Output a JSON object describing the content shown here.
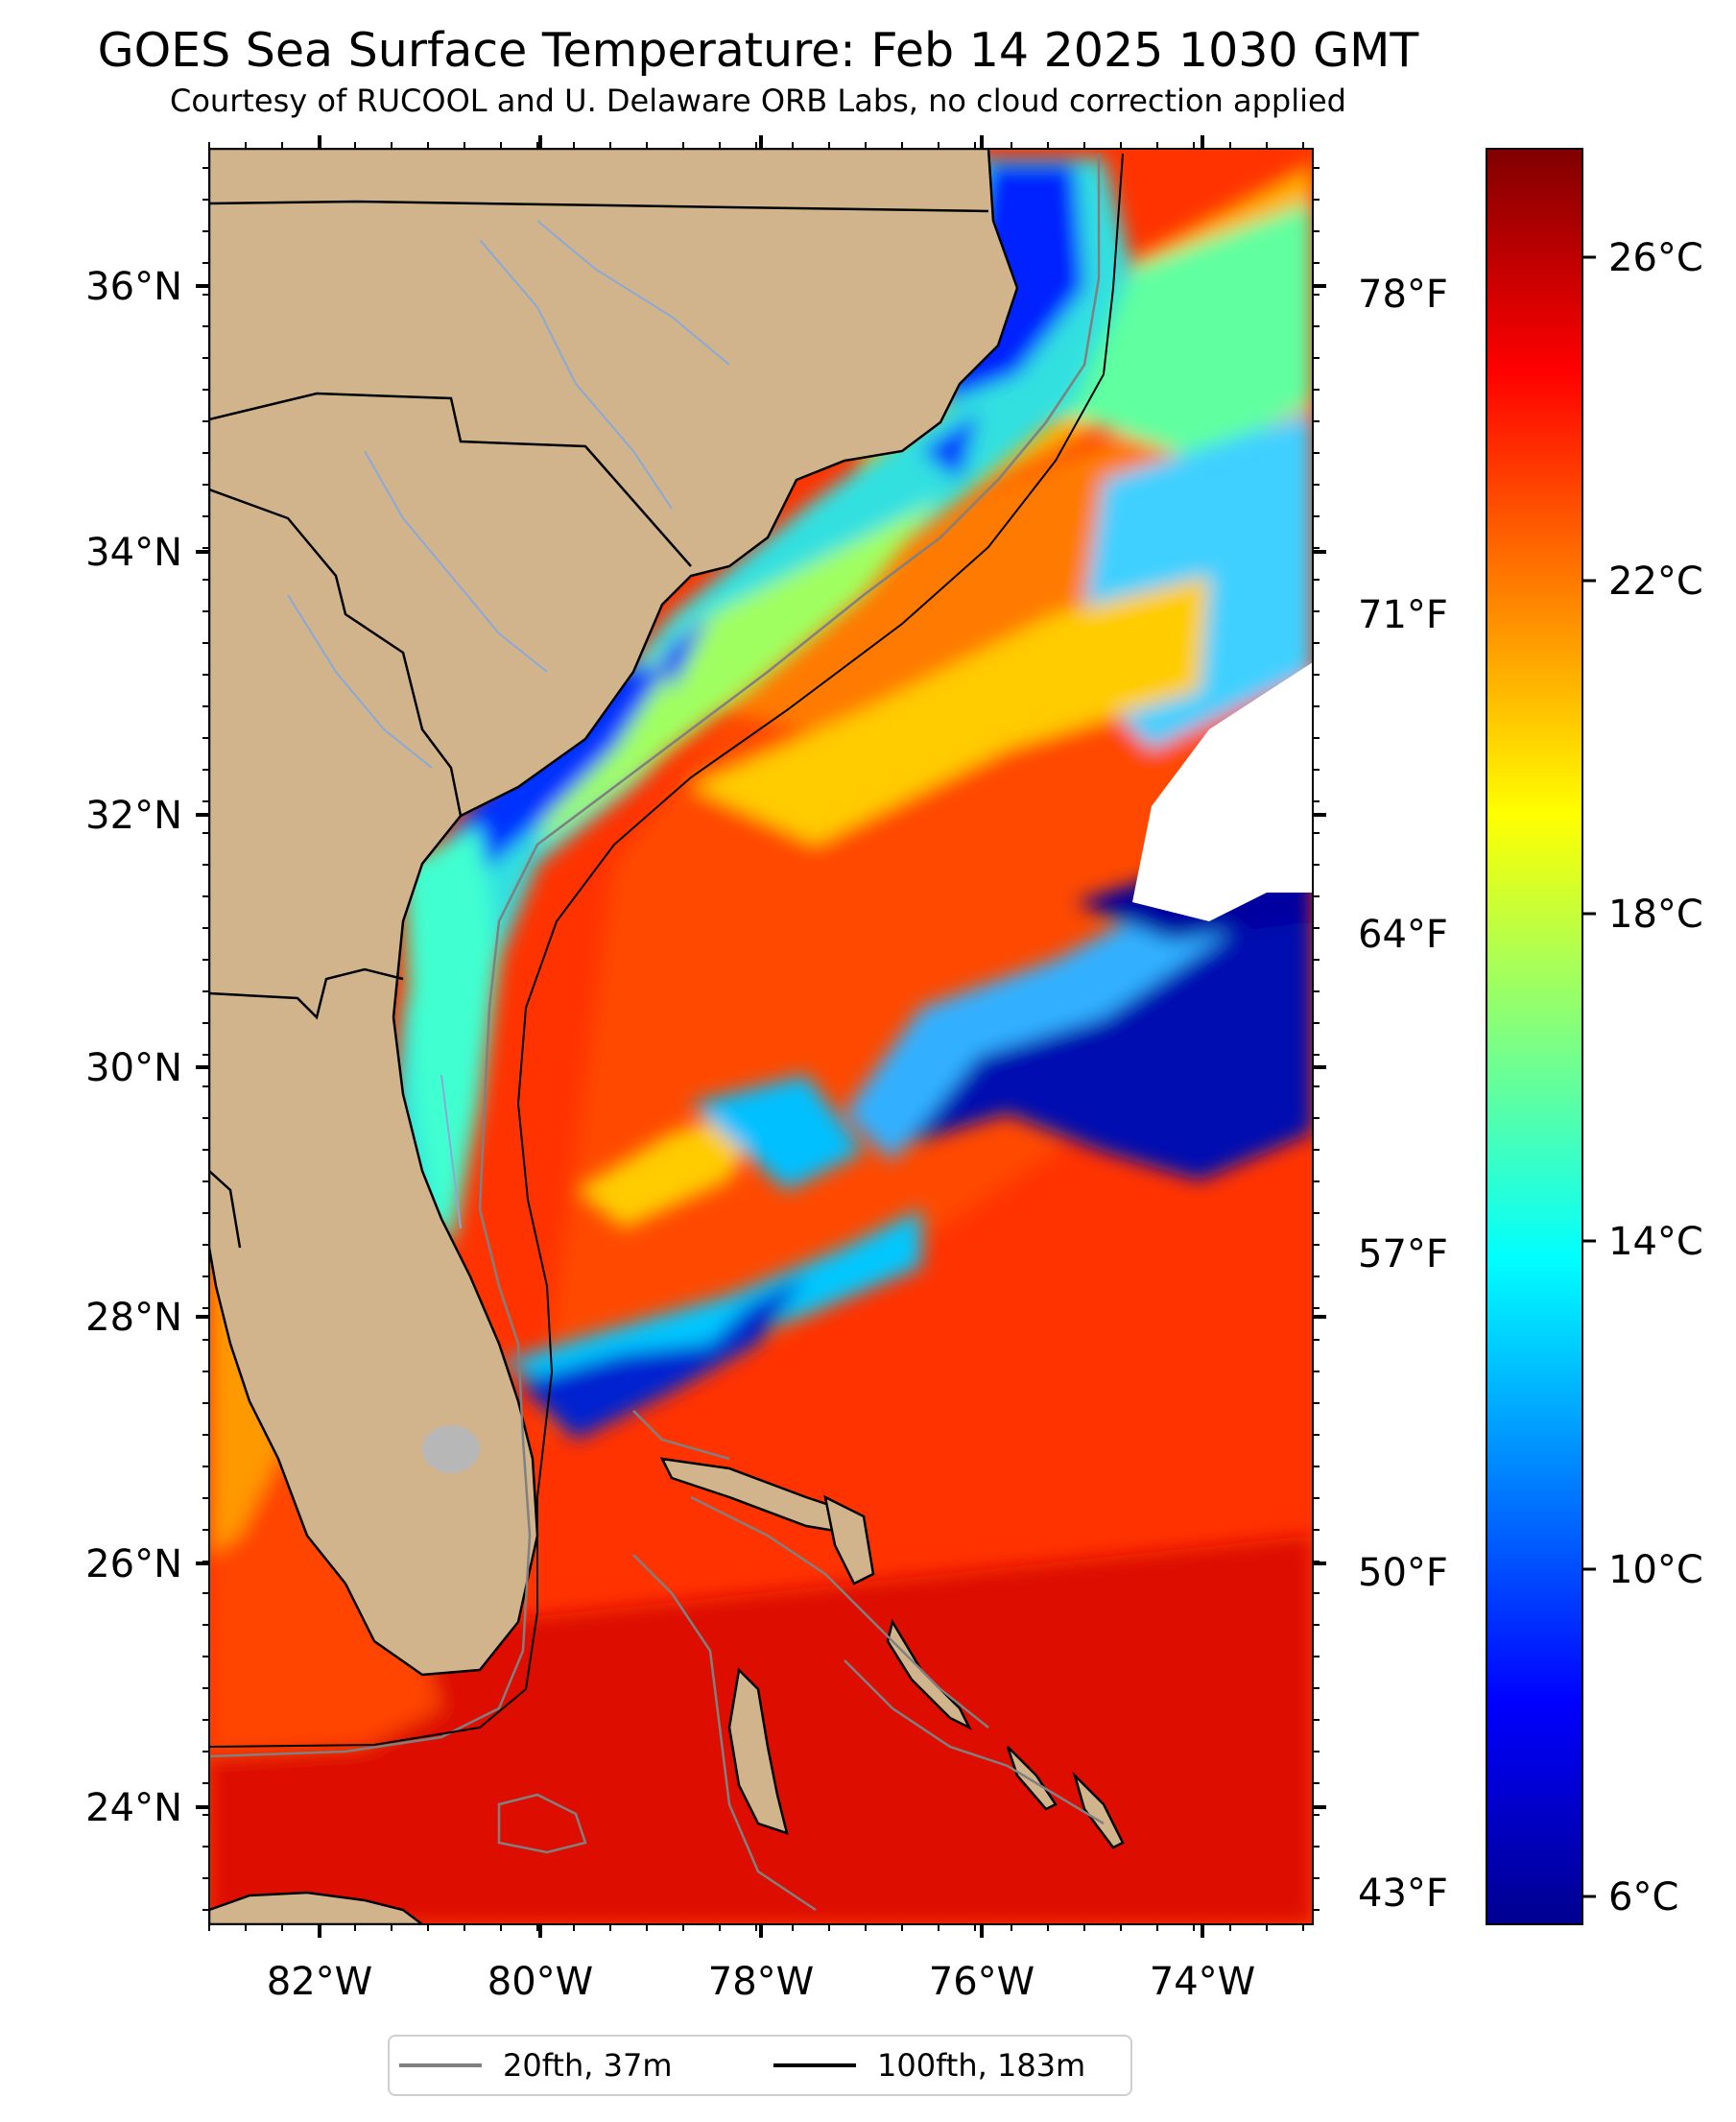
{
  "title": "GOES Sea Surface Temperature: Feb 14 2025 1030 GMT",
  "subtitle": "Courtesy of RUCOOL and U. Delaware ORB Labs, no cloud correction applied",
  "map": {
    "region": "U.S. Southeast Atlantic coast, Florida and the Bahamas",
    "extent": {
      "lon": [
        -83,
        -73
      ],
      "lat": [
        23.1,
        37.1
      ]
    },
    "lat_tick_labels": [
      "36°N",
      "34°N",
      "32°N",
      "30°N",
      "28°N",
      "26°N",
      "24°N"
    ],
    "lon_tick_labels": [
      "82°W",
      "80°W",
      "78°W",
      "76°W",
      "74°W"
    ],
    "fahrenheit_tick_labels": [
      "78°F",
      "71°F",
      "64°F",
      "57°F",
      "50°F",
      "43°F"
    ],
    "land_color": "#d2b48c",
    "no_data_color": "#ffffff",
    "features": [
      "sea surface temperature field",
      "Gulf Stream warm core",
      "cold shelf water",
      "cloud gaps"
    ]
  },
  "colorbar": {
    "label_celsius": [
      "26°C",
      "22°C",
      "18°C",
      "14°C",
      "10°C",
      "6°C"
    ],
    "range_celsius": [
      5.6,
      27.6
    ],
    "colormap": "jet",
    "colors": [
      "#00008f",
      "#0000ff",
      "#0080ff",
      "#00ffff",
      "#80ff80",
      "#ffff00",
      "#ff8000",
      "#ff0000",
      "#800000"
    ]
  },
  "legend": {
    "items": [
      {
        "label": "20fth, 37m",
        "color": "#808080"
      },
      {
        "label": "100fth, 183m",
        "color": "#000000"
      }
    ]
  }
}
